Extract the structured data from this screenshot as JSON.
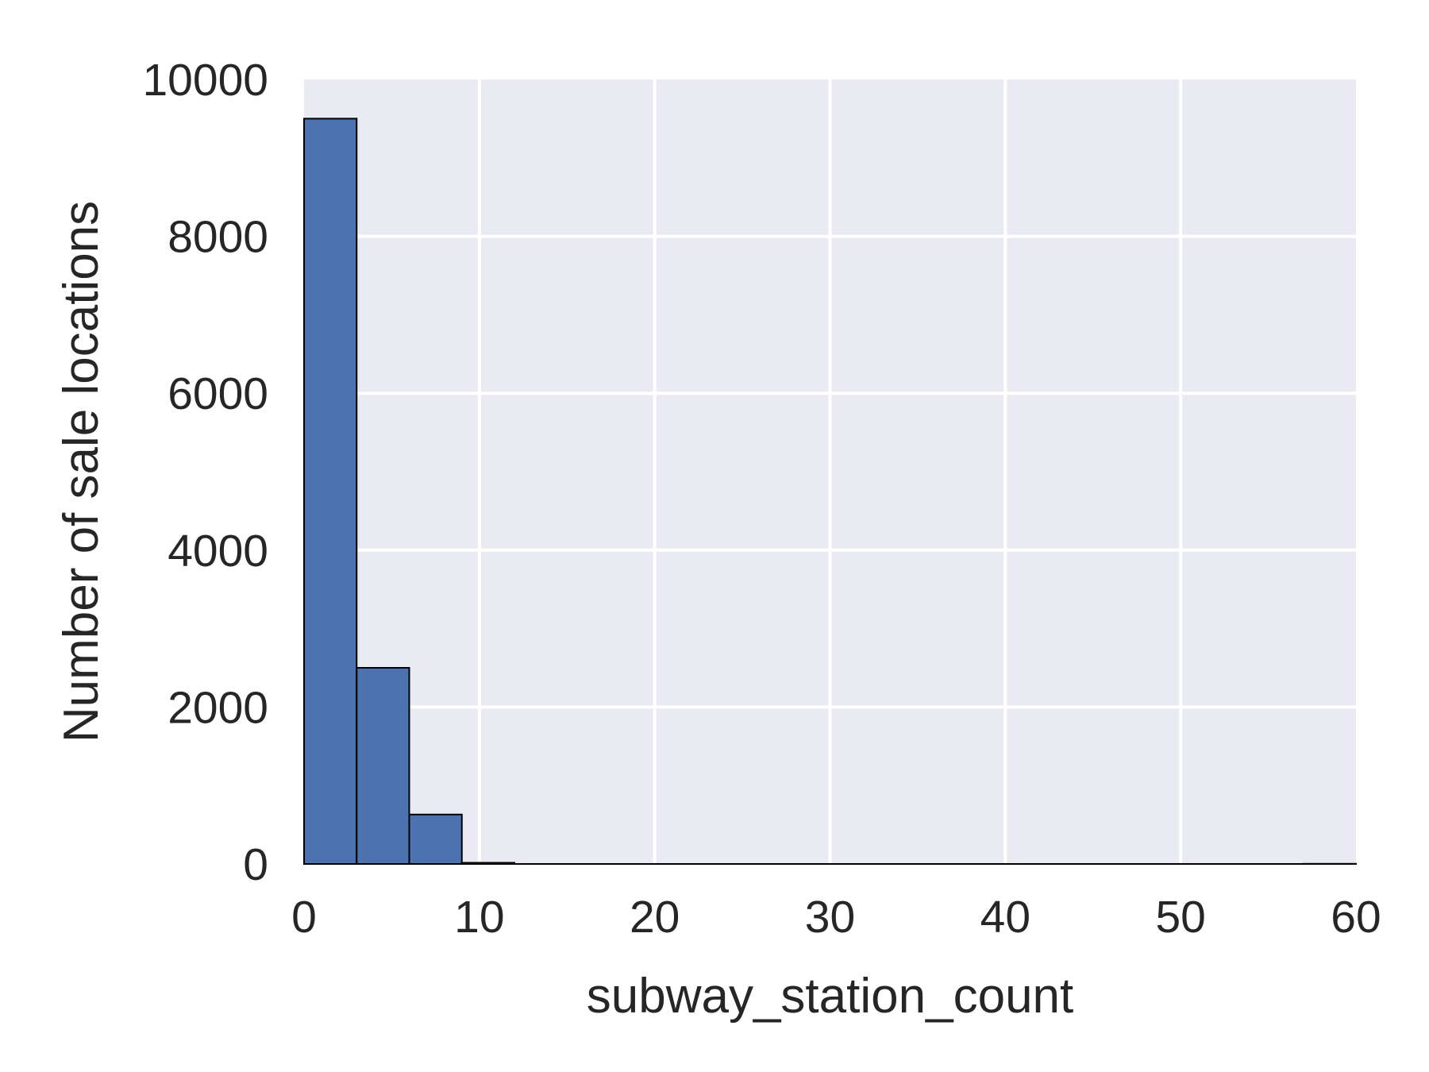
{
  "chart_data": {
    "type": "bar",
    "subtype": "histogram",
    "xlabel": "subway_station_count",
    "ylabel": "Number of sale locations",
    "xlim": [
      0,
      60
    ],
    "ylim": [
      0,
      10000
    ],
    "xticks": [
      0,
      10,
      20,
      30,
      40,
      50,
      60
    ],
    "xtick_labels": [
      "0",
      "10",
      "20",
      "30",
      "40",
      "50",
      "60"
    ],
    "yticks": [
      0,
      2000,
      4000,
      6000,
      8000,
      10000
    ],
    "ytick_labels": [
      "0",
      "2000",
      "4000",
      "6000",
      "8000",
      "10000"
    ],
    "bin_edges": [
      0,
      3,
      6,
      9,
      12,
      15,
      18,
      21,
      24,
      27,
      30,
      33,
      36,
      39,
      42,
      45,
      48,
      51,
      54,
      57,
      60
    ],
    "values": [
      9500,
      2500,
      630,
      15,
      0,
      0,
      0,
      0,
      0,
      0,
      0,
      0,
      0,
      0,
      0,
      0,
      0,
      0,
      0,
      2
    ],
    "grid": true,
    "legend": "none",
    "colors": {
      "bar_fill": "#4c72b0",
      "bar_edge": "#000000",
      "plot_background": "#eaeaf2",
      "grid": "#ffffff",
      "text": "#262626"
    }
  }
}
